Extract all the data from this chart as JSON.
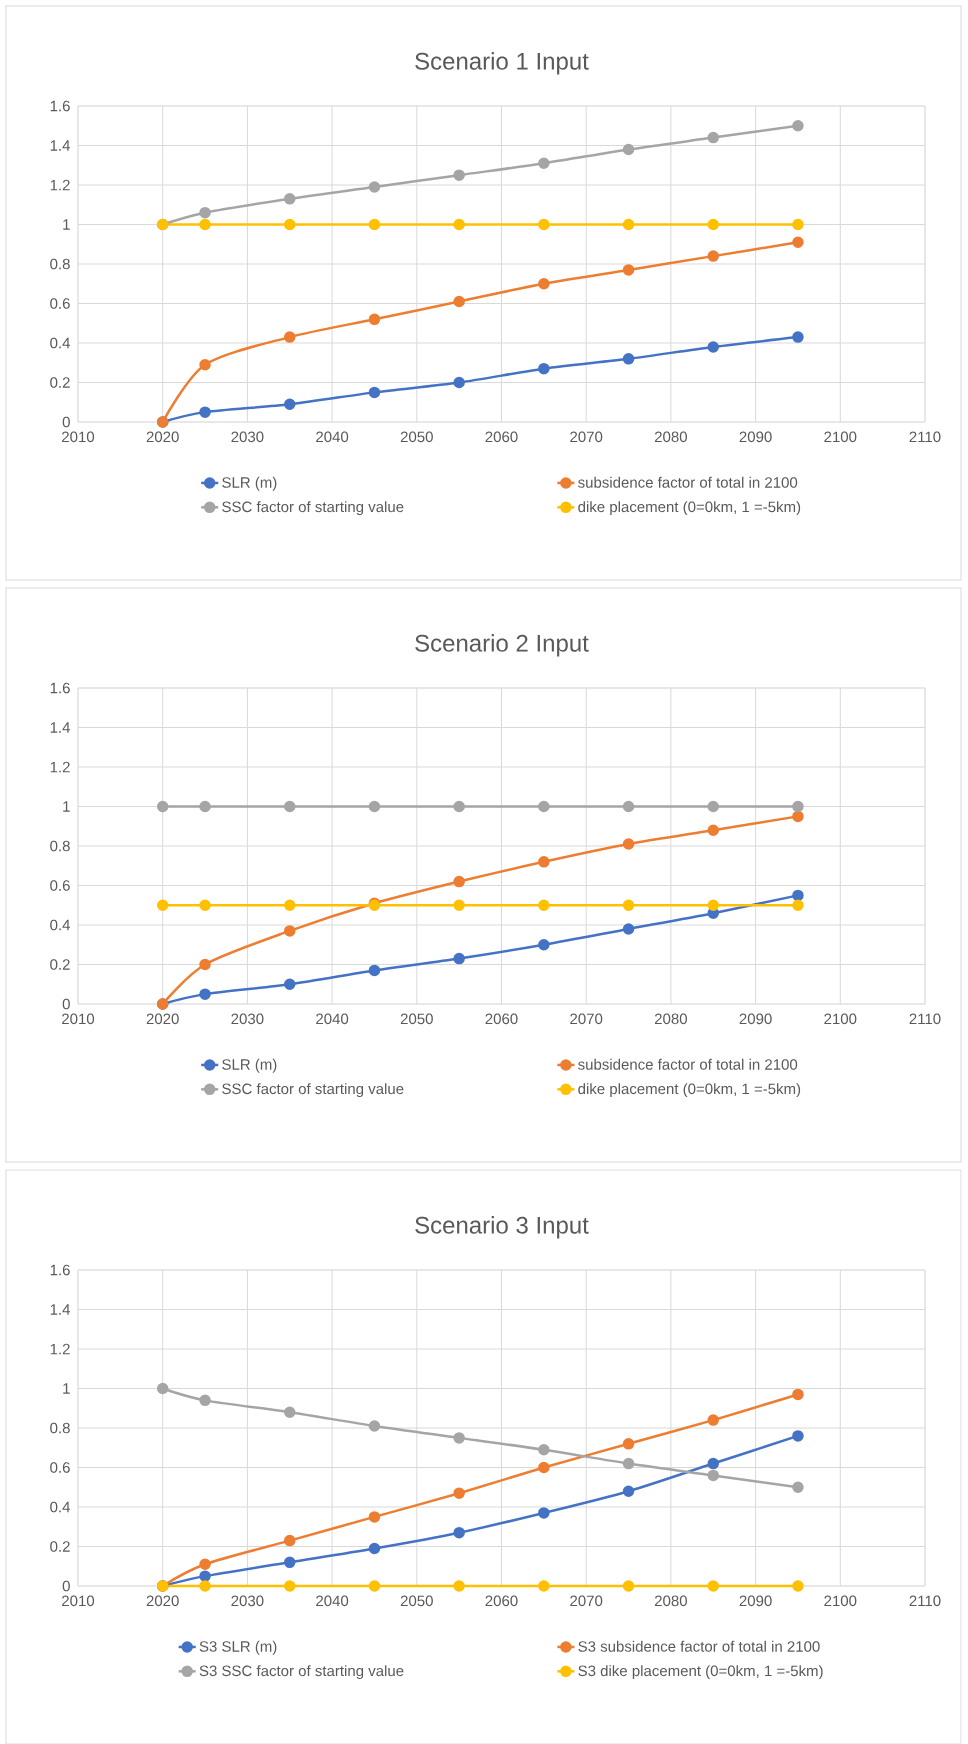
{
  "chart_data": [
    {
      "type": "line",
      "title": "Scenario 1 Input",
      "x": [
        2020,
        2025,
        2035,
        2045,
        2055,
        2065,
        2075,
        2085,
        2095
      ],
      "xlim": [
        2010,
        2110
      ],
      "xticks": [
        2010,
        2020,
        2030,
        2040,
        2050,
        2060,
        2070,
        2080,
        2090,
        2100,
        2110
      ],
      "ylim": [
        0,
        1.6
      ],
      "yticks": [
        0,
        0.2,
        0.4,
        0.6,
        0.8,
        1,
        1.2,
        1.4,
        1.6
      ],
      "grid": true,
      "legend": "bottom",
      "marker": "circle",
      "series": [
        {
          "name": "SLR (m)",
          "color": "#4472c4",
          "values": [
            0,
            0.05,
            0.09,
            0.15,
            0.2,
            0.27,
            0.32,
            0.38,
            0.43
          ]
        },
        {
          "name": "subsidence factor of total in 2100",
          "color": "#ed7d31",
          "values": [
            0,
            0.29,
            0.43,
            0.52,
            0.61,
            0.7,
            0.77,
            0.84,
            0.91
          ]
        },
        {
          "name": "SSC factor of starting value",
          "color": "#a5a5a5",
          "values": [
            1,
            1.06,
            1.13,
            1.19,
            1.25,
            1.31,
            1.38,
            1.44,
            1.5
          ]
        },
        {
          "name": "dike placement (0=0km, 1 =-5km)",
          "color": "#ffc000",
          "values": [
            1,
            1,
            1,
            1,
            1,
            1,
            1,
            1,
            1
          ]
        }
      ]
    },
    {
      "type": "line",
      "title": "Scenario 2 Input",
      "x": [
        2020,
        2025,
        2035,
        2045,
        2055,
        2065,
        2075,
        2085,
        2095
      ],
      "xlim": [
        2010,
        2110
      ],
      "xticks": [
        2010,
        2020,
        2030,
        2040,
        2050,
        2060,
        2070,
        2080,
        2090,
        2100,
        2110
      ],
      "ylim": [
        0,
        1.6
      ],
      "yticks": [
        0,
        0.2,
        0.4,
        0.6,
        0.8,
        1,
        1.2,
        1.4,
        1.6
      ],
      "grid": true,
      "legend": "bottom",
      "marker": "circle",
      "series": [
        {
          "name": "SLR (m)",
          "color": "#4472c4",
          "values": [
            0,
            0.05,
            0.1,
            0.17,
            0.23,
            0.3,
            0.38,
            0.46,
            0.55
          ]
        },
        {
          "name": "subsidence factor of total in 2100",
          "color": "#ed7d31",
          "values": [
            0,
            0.2,
            0.37,
            0.51,
            0.62,
            0.72,
            0.81,
            0.88,
            0.95
          ]
        },
        {
          "name": "SSC factor of starting value",
          "color": "#a5a5a5",
          "values": [
            1,
            1,
            1,
            1,
            1,
            1,
            1,
            1,
            1
          ]
        },
        {
          "name": "dike placement (0=0km, 1 =-5km)",
          "color": "#ffc000",
          "values": [
            0.5,
            0.5,
            0.5,
            0.5,
            0.5,
            0.5,
            0.5,
            0.5,
            0.5
          ]
        }
      ]
    },
    {
      "type": "line",
      "title": "Scenario 3 Input",
      "x": [
        2020,
        2025,
        2035,
        2045,
        2055,
        2065,
        2075,
        2085,
        2095
      ],
      "xlim": [
        2010,
        2110
      ],
      "xticks": [
        2010,
        2020,
        2030,
        2040,
        2050,
        2060,
        2070,
        2080,
        2090,
        2100,
        2110
      ],
      "ylim": [
        0,
        1.6
      ],
      "yticks": [
        0,
        0.2,
        0.4,
        0.6,
        0.8,
        1,
        1.2,
        1.4,
        1.6
      ],
      "grid": true,
      "legend": "bottom",
      "marker": "circle",
      "series": [
        {
          "name": "S3 SLR (m)",
          "color": "#4472c4",
          "values": [
            0,
            0.05,
            0.12,
            0.19,
            0.27,
            0.37,
            0.48,
            0.62,
            0.76
          ]
        },
        {
          "name": "S3 subsidence factor of total in 2100",
          "color": "#ed7d31",
          "values": [
            0,
            0.11,
            0.23,
            0.35,
            0.47,
            0.6,
            0.72,
            0.84,
            0.97
          ]
        },
        {
          "name": "S3 SSC factor of starting value",
          "color": "#a5a5a5",
          "values": [
            1,
            0.94,
            0.88,
            0.81,
            0.75,
            0.69,
            0.62,
            0.56,
            0.5
          ]
        },
        {
          "name": "S3 dike placement (0=0km, 1 =-5km)",
          "color": "#ffc000",
          "values": [
            0,
            0,
            0,
            0,
            0,
            0,
            0,
            0,
            0
          ]
        }
      ]
    }
  ]
}
